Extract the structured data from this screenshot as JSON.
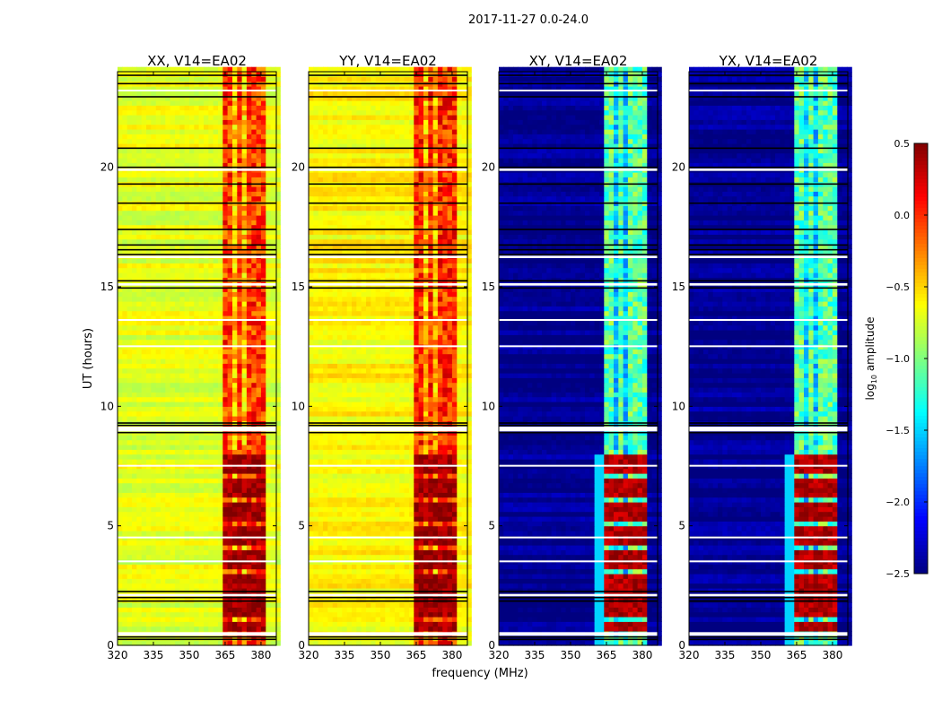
{
  "chart_data": {
    "type": "heatmap",
    "title": "2017-11-27 0.0-24.0",
    "xlabel": "frequency (MHz)",
    "ylabel": "UT (hours)",
    "xlim": [
      320,
      386.4
    ],
    "ylim": [
      0,
      24
    ],
    "xticks": [
      320,
      335,
      350,
      365,
      380
    ],
    "yticks": [
      0,
      5,
      10,
      15,
      20
    ],
    "colorbar": {
      "label": "log10 amplitude",
      "label_main": "log",
      "label_sub": "10",
      "label_rest": " amplitude",
      "range": [
        -2.5,
        0.5
      ],
      "ticks": [
        "0.5",
        "0.0",
        "−0.5",
        "−1.0",
        "−1.5",
        "−2.0",
        "−2.5"
      ],
      "tick_values": [
        0.5,
        0.0,
        -0.5,
        -1.0,
        -1.5,
        -2.0,
        -2.5
      ],
      "colormap": "jet"
    },
    "panels": [
      {
        "title": "XX, V14=EA02",
        "base": -0.7,
        "band": -0.05,
        "band_bright": 0.4
      },
      {
        "title": "YY, V14=EA02",
        "base": -0.6,
        "band": 0.0,
        "band_bright": 0.4
      },
      {
        "title": "XY, V14=EA02",
        "base": -2.45,
        "band": -1.1,
        "band_bright": 0.35
      },
      {
        "title": "YX, V14=EA02",
        "base": -2.45,
        "band": -1.1,
        "band_bright": 0.35
      }
    ],
    "band_MHz": [
      363,
      381
    ],
    "bright_UT": [
      0.5,
      8.0
    ],
    "flagged_black_UT": [
      0.25,
      0.35,
      1.85,
      2.0,
      2.25,
      8.9,
      9.2,
      9.3,
      14.95,
      15.25,
      16.35,
      16.55,
      16.75,
      17.4,
      18.5,
      19.3,
      20.0,
      20.8,
      22.95,
      23.5,
      23.85
    ],
    "flagged_white_UT": [
      [
        0.4,
        0.55
      ],
      [
        2.05,
        2.15
      ],
      [
        8.95,
        9.15
      ],
      [
        15.05,
        15.15
      ],
      [
        16.2,
        16.3
      ],
      [
        19.85,
        19.95
      ],
      [
        3.5,
        3.55
      ],
      [
        4.5,
        4.55
      ],
      [
        7.5,
        7.55
      ],
      [
        12.5,
        12.55
      ],
      [
        13.6,
        13.65
      ],
      [
        23.2,
        23.25
      ]
    ]
  }
}
